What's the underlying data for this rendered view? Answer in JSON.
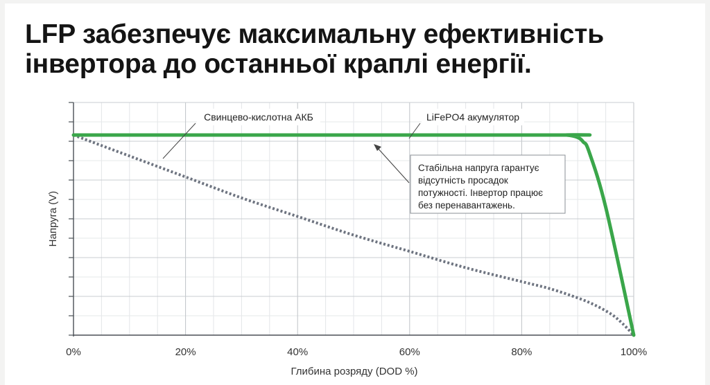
{
  "title_lines": [
    "LFP забезпечує максимальну ефективність",
    "інвертора до останньої краплі енергії."
  ],
  "chart_data": {
    "type": "line",
    "xlabel": "Глибина розряду (DOD %)",
    "ylabel": "Напруга (V)",
    "xlim": [
      0,
      100
    ],
    "ylim": [
      0,
      1
    ],
    "x_tick_labels": [
      "0%",
      "20%",
      "40%",
      "60%",
      "80%",
      "100%"
    ],
    "x_tick_values": [
      0,
      20,
      40,
      60,
      80,
      100
    ],
    "grid": true,
    "series": [
      {
        "name": "LiFePO4 акумулятор",
        "color": "#3aa64a",
        "style": "solid",
        "x": [
          0,
          85,
          88,
          90,
          91,
          92,
          95,
          100
        ],
        "y": [
          0.86,
          0.86,
          0.86,
          0.85,
          0.83,
          0.79,
          0.55,
          0
        ]
      },
      {
        "name": "Свинцево-кислотна АКБ",
        "color": "#6e7480",
        "style": "dotted",
        "x": [
          0,
          10,
          20,
          30,
          40,
          50,
          60,
          70,
          80,
          85,
          90,
          93,
          96,
          98,
          100
        ],
        "y": [
          0.86,
          0.77,
          0.68,
          0.59,
          0.51,
          0.43,
          0.36,
          0.29,
          0.23,
          0.2,
          0.16,
          0.13,
          0.09,
          0.05,
          0
        ]
      }
    ],
    "annotations": [
      {
        "id": "lead",
        "text": "Свинцево-кислотна АКБ"
      },
      {
        "id": "lfp",
        "text": "LiFePO4 акумулятор"
      },
      {
        "id": "note",
        "lines": [
          "Стабільна напруга гарантує",
          "відсутність просадок",
          "потужності. Інвертор працює",
          "без перенавантажень."
        ]
      }
    ]
  }
}
